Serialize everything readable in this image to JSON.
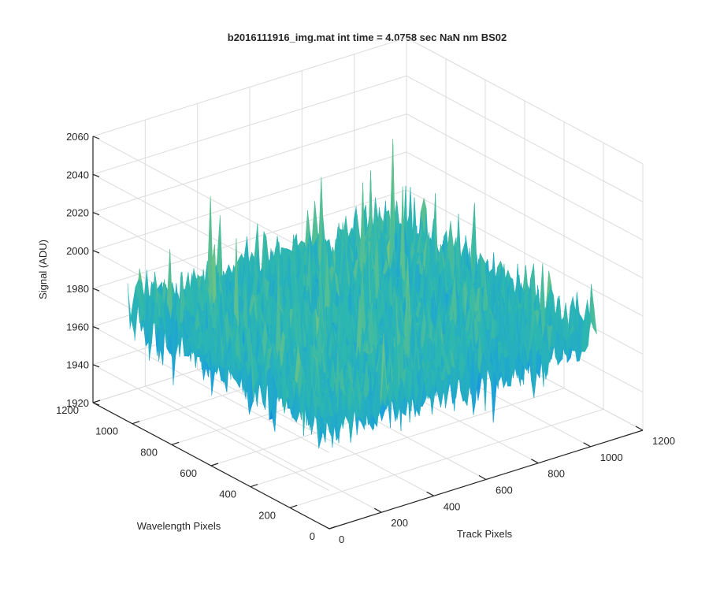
{
  "chart_data": {
    "type": "surface",
    "title": "b2016111916_img.mat int time = 4.0758 sec  NaN nm BS02",
    "xlabel": "Track Pixels",
    "ylabel": "Wavelength Pixels",
    "zlabel": "Signal (ADU)",
    "xlim": [
      0,
      1200
    ],
    "ylim": [
      0,
      1200
    ],
    "zlim": [
      1920,
      2060
    ],
    "x_ticks": [
      "0",
      "200",
      "400",
      "600",
      "800",
      "1000",
      "1200"
    ],
    "y_ticks": [
      "0",
      "200",
      "400",
      "600",
      "800",
      "1000",
      "1200"
    ],
    "z_ticks": [
      "1920",
      "1940",
      "1960",
      "1980",
      "2000",
      "2020",
      "2040",
      "2060"
    ],
    "data_extent": {
      "x": [
        0,
        1024
      ],
      "y": [
        0,
        1024
      ]
    },
    "signal_mean_adu": 1977,
    "signal_range_adu": [
      1940,
      2050
    ],
    "colormap": [
      "#1f6fd6",
      "#1aa0dd",
      "#2cb7b0",
      "#7cc57a",
      "#d9c83a"
    ],
    "grid": true
  }
}
